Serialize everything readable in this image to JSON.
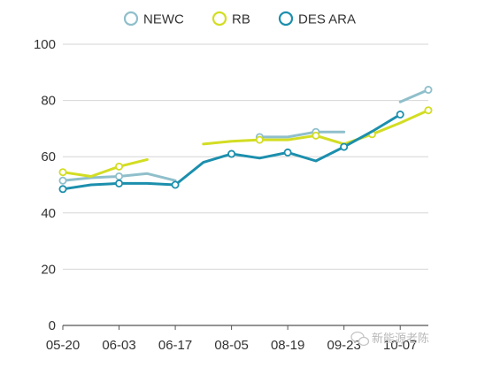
{
  "chart_data": {
    "type": "line",
    "title": "",
    "xlabel": "",
    "ylabel": "",
    "ylim": [
      0,
      100
    ],
    "y_ticks": [
      0,
      20,
      40,
      60,
      80,
      100
    ],
    "x_ticks": [
      "05-20",
      "06-03",
      "06-17",
      "08-05",
      "08-19",
      "09-23",
      "10-07"
    ],
    "legend_position": "top-center",
    "grid": "horizontal",
    "series": [
      {
        "name": "NEWC",
        "color": "#8fbfcb",
        "segments": [
          [
            [
              0,
              51.5
            ],
            [
              1,
              52.5
            ],
            [
              2,
              53
            ],
            [
              3,
              54
            ],
            [
              4,
              51.5
            ]
          ],
          [
            [
              7,
              67
            ],
            [
              8,
              67
            ],
            [
              9,
              68.8
            ],
            [
              10,
              68.8
            ]
          ],
          [
            [
              12,
              79.5
            ],
            [
              13,
              83.8
            ]
          ]
        ],
        "markers": [
          [
            0,
            51.5
          ],
          [
            2,
            53
          ],
          [
            7,
            67
          ],
          [
            9,
            68.8
          ],
          [
            13,
            83.8
          ]
        ]
      },
      {
        "name": "RB",
        "color": "#d3dd22",
        "segments": [
          [
            [
              0,
              54.5
            ],
            [
              1,
              53
            ],
            [
              2,
              56.5
            ],
            [
              3,
              59
            ]
          ],
          [
            [
              5,
              64.5
            ],
            [
              6,
              65.5
            ],
            [
              7,
              66
            ],
            [
              8,
              66
            ],
            [
              9,
              67.5
            ],
            [
              10,
              64.5
            ],
            [
              11,
              68
            ],
            [
              12,
              72
            ],
            [
              13,
              76.5
            ]
          ]
        ],
        "markers": [
          [
            0,
            54.5
          ],
          [
            2,
            56.5
          ],
          [
            7,
            66
          ],
          [
            9,
            67.5
          ],
          [
            11,
            68
          ],
          [
            13,
            76.5
          ]
        ]
      },
      {
        "name": "DES ARA",
        "color": "#1c8fad",
        "segments": [
          [
            [
              0,
              48.5
            ],
            [
              1,
              50
            ],
            [
              2,
              50.5
            ],
            [
              3,
              50.5
            ],
            [
              4,
              50
            ],
            [
              5,
              58
            ],
            [
              6,
              61
            ],
            [
              7,
              59.5
            ],
            [
              8,
              61.5
            ],
            [
              9,
              58.5
            ],
            [
              10,
              63.5
            ],
            [
              11,
              69
            ],
            [
              12,
              75
            ]
          ]
        ],
        "markers": [
          [
            0,
            48.5
          ],
          [
            2,
            50.5
          ],
          [
            4,
            50
          ],
          [
            6,
            61
          ],
          [
            8,
            61.5
          ],
          [
            10,
            63.5
          ],
          [
            12,
            75
          ]
        ]
      }
    ]
  },
  "watermark": {
    "text": "新能源老陈"
  }
}
